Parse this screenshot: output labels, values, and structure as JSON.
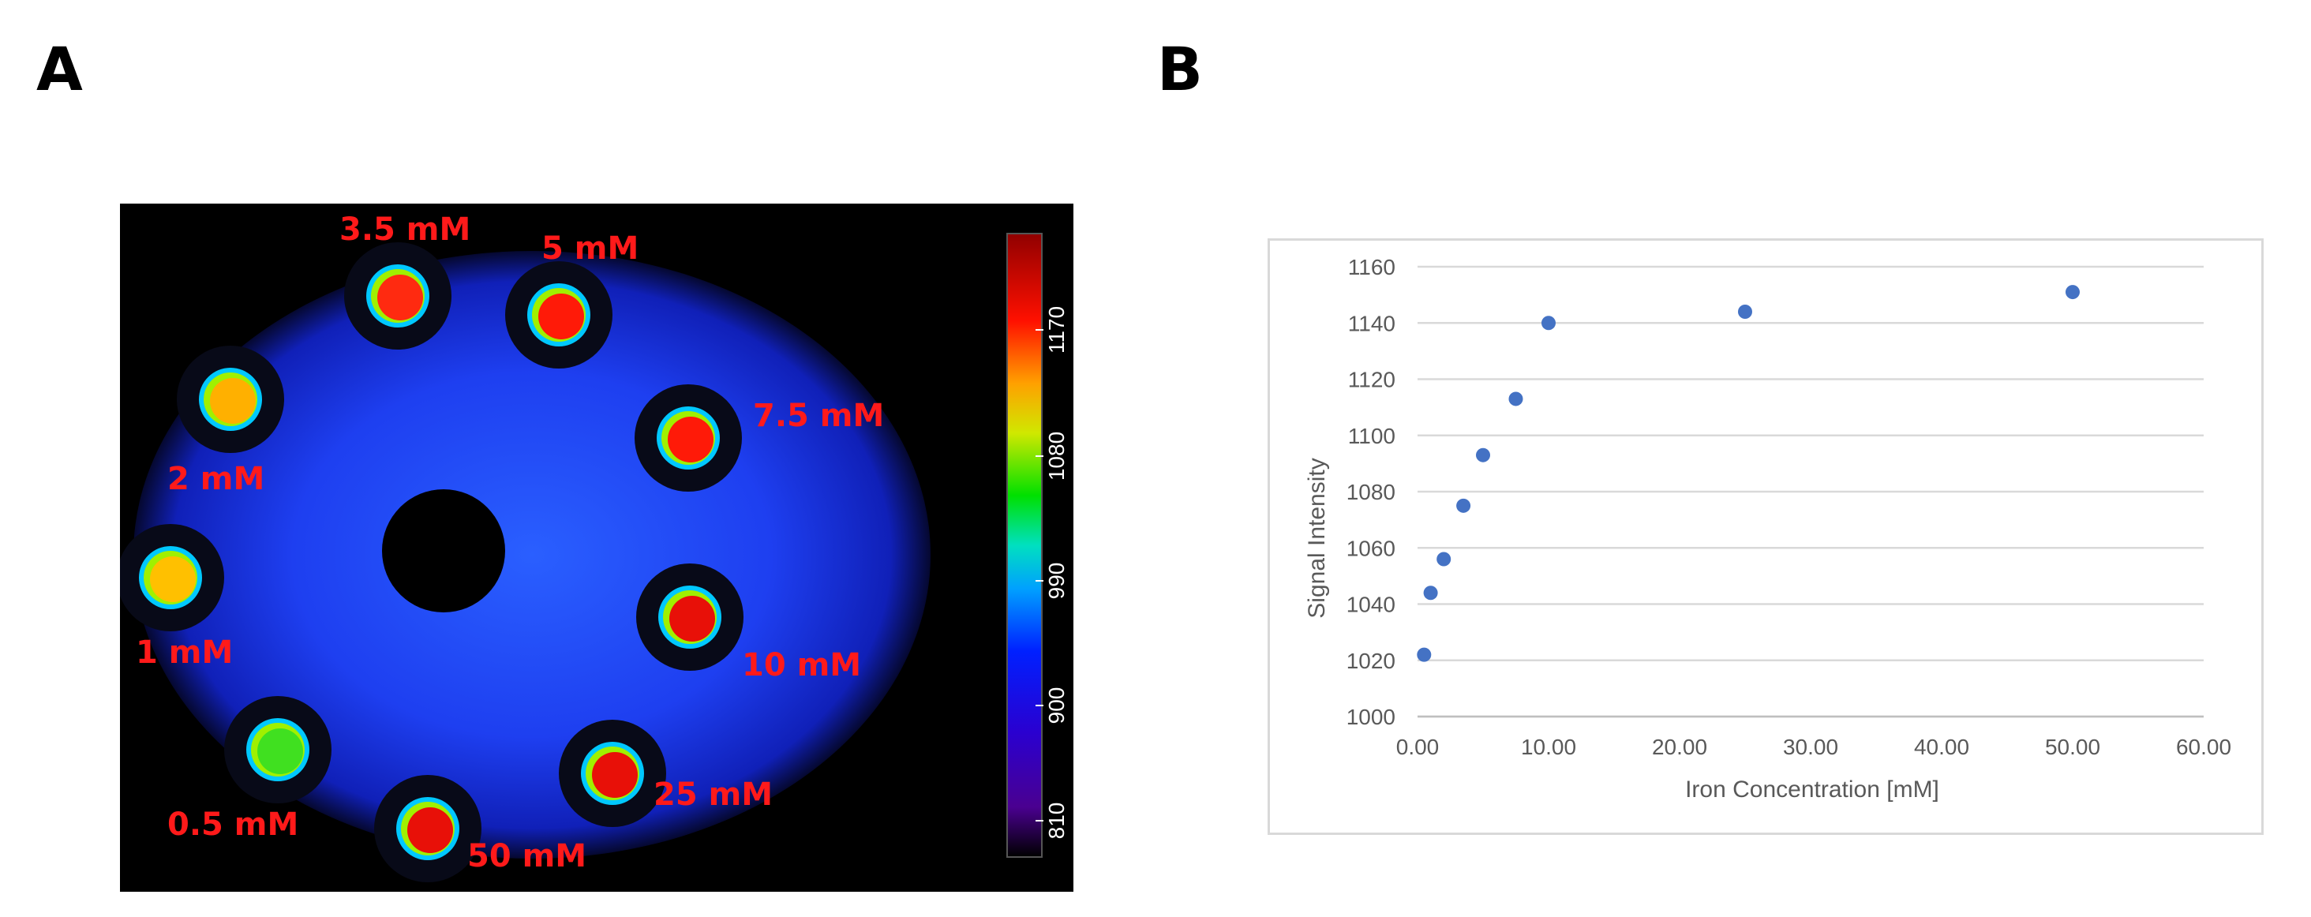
{
  "panels": {
    "a_label": "A",
    "b_label": "B"
  },
  "phantom": {
    "tubes": [
      {
        "label": "3.5 mM",
        "color": "#ff2a10"
      },
      {
        "label": "5 mM",
        "color": "#ff1a08"
      },
      {
        "label": "7.5 mM",
        "color": "#ff1a08"
      },
      {
        "label": "2 mM",
        "color": "#ffb000"
      },
      {
        "label": "1 mM",
        "color": "#ffc000"
      },
      {
        "label": "10 mM",
        "color": "#e81008"
      },
      {
        "label": "0.5 mM",
        "color": "#40e020"
      },
      {
        "label": "25 mM",
        "color": "#e81008"
      },
      {
        "label": "50 mM",
        "color": "#e81008"
      }
    ],
    "label_color": "#ff1a1a",
    "colorbar_ticks": [
      "810",
      "900",
      "990",
      "1080",
      "1170"
    ]
  },
  "chart_data": {
    "type": "scatter",
    "xlabel": "Iron Concentration [mM]",
    "ylabel": "Signal Intensity",
    "xlim": [
      0,
      60
    ],
    "ylim": [
      1000,
      1160
    ],
    "x_ticks": [
      "0.00",
      "10.00",
      "20.00",
      "30.00",
      "40.00",
      "50.00",
      "60.00"
    ],
    "y_ticks": [
      "1000",
      "1020",
      "1040",
      "1060",
      "1080",
      "1100",
      "1120",
      "1140",
      "1160"
    ],
    "grid": true,
    "marker_color": "#4472c4",
    "series": [
      {
        "x": [
          0.5,
          1,
          2,
          3.5,
          5,
          7.5,
          10,
          25,
          50
        ],
        "y": [
          1022,
          1044,
          1056,
          1075,
          1093,
          1113,
          1140,
          1144,
          1151
        ]
      }
    ]
  }
}
